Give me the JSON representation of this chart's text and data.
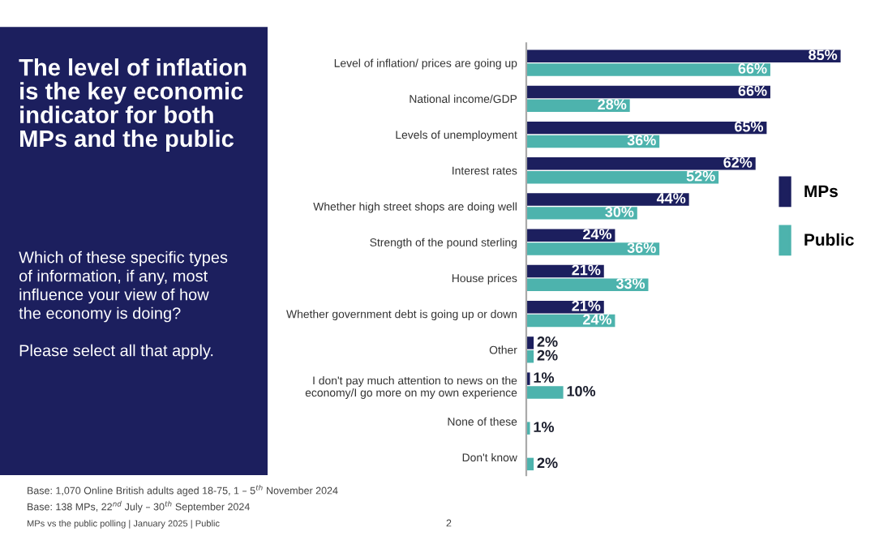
{
  "chart_data": {
    "type": "bar",
    "orientation": "horizontal",
    "title": "The level of inflation\nis the key economic\nindicator for both\nMPs and the public",
    "subtitle": "Which of these specific types\nof information, if any, most\ninfluence your view of how\nthe economy is doing?\n\nPlease select all that apply.",
    "categories": [
      "Level of inflation/ prices are going up",
      "National income/GDP",
      "Levels of unemployment",
      "Interest rates",
      "Whether high street shops are doing well",
      "Strength of the pound sterling",
      "House prices",
      "Whether government debt is going up or down",
      "Other",
      "I don't pay much attention to news on the\neconomy/I go more on my own experience",
      "None of these",
      "Don't know"
    ],
    "series": [
      {
        "name": "MPs",
        "color": "#1c1f5e",
        "values": [
          85,
          66,
          65,
          62,
          44,
          24,
          21,
          21,
          2,
          1,
          null,
          null
        ],
        "value_labels": [
          "85%",
          "66%",
          "65%",
          "62%",
          "44%",
          "24%",
          "21%",
          "21%",
          "2%",
          "1%",
          null,
          null
        ]
      },
      {
        "name": "Public",
        "color": "#4db3ad",
        "values": [
          66,
          28,
          36,
          52,
          30,
          36,
          33,
          24,
          2,
          10,
          1,
          2
        ],
        "value_labels": [
          "66%",
          "28%",
          "36%",
          "52%",
          "30%",
          "36%",
          "33%",
          "24%",
          "2%",
          "10%",
          "1%",
          "2%"
        ]
      }
    ],
    "legend": "right",
    "annotations": [
      "Base: 1,070 Online British adults aged 18-75, 1 – 5$^{th}$ November 2024",
      "Base: 138 MPs, 22$^{nd}$ July – 30$^{th}$ September 2024",
      "MPs vs the public polling | January 2025 | Public",
      "2"
    ]
  }
}
